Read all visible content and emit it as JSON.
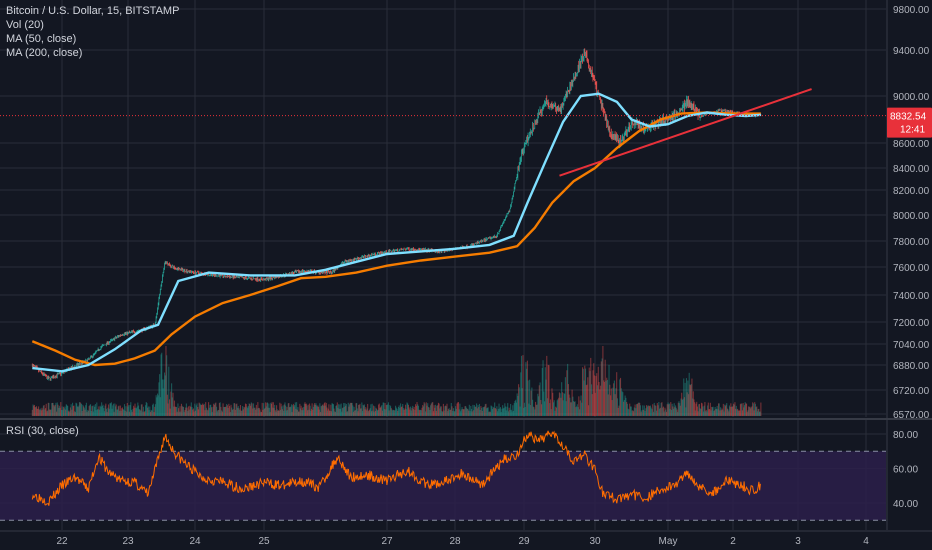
{
  "header": {
    "symbol_line": "Bitcoin / U.S. Dollar, 15, BITSTAMP",
    "indicators": [
      "Vol (20)",
      "MA (50, close)",
      "MA (200, close)"
    ]
  },
  "rsi_panel": {
    "label": "RSI (30, close)"
  },
  "price_tag": {
    "value": "8832.54",
    "countdown": "12:41"
  },
  "colors": {
    "background": "#131722",
    "grid": "#2a2e39",
    "axis_text": "#b2b5be",
    "candle_up": "#26a69a",
    "candle_down": "#ef5350",
    "ma50": "#7fdfff",
    "ma200": "#f57c00",
    "trendline": "#e8313a",
    "rsi": "#ff6d00",
    "rsi_band": "#2b1f4a",
    "price_tag": "#e8313a"
  },
  "chart_data": [
    {
      "type": "candlestick",
      "title": "Bitcoin / U.S. Dollar, 15, BITSTAMP",
      "x_ticks": [
        "22",
        "23",
        "24",
        "25",
        "27",
        "28",
        "29",
        "30",
        "May",
        "2",
        "3",
        "4"
      ],
      "y_ticks": [
        6570,
        6720,
        6880,
        7040,
        7200,
        7400,
        7600,
        7800,
        8000,
        8200,
        8400,
        8600,
        9000,
        9400,
        9800
      ],
      "ylim": [
        6570,
        9800
      ],
      "last_price": 8832.54,
      "close_path": [
        {
          "x": 21.55,
          "y": 6880
        },
        {
          "x": 21.8,
          "y": 6790
        },
        {
          "x": 22.1,
          "y": 6850
        },
        {
          "x": 22.4,
          "y": 6920
        },
        {
          "x": 22.6,
          "y": 7020
        },
        {
          "x": 22.9,
          "y": 7110
        },
        {
          "x": 23.2,
          "y": 7140
        },
        {
          "x": 23.4,
          "y": 7180
        },
        {
          "x": 23.55,
          "y": 7640
        },
        {
          "x": 23.7,
          "y": 7590
        },
        {
          "x": 24.0,
          "y": 7560
        },
        {
          "x": 24.5,
          "y": 7530
        },
        {
          "x": 25.0,
          "y": 7510
        },
        {
          "x": 25.6,
          "y": 7570
        },
        {
          "x": 26.1,
          "y": 7560
        },
        {
          "x": 26.3,
          "y": 7640
        },
        {
          "x": 26.8,
          "y": 7700
        },
        {
          "x": 27.3,
          "y": 7740
        },
        {
          "x": 27.8,
          "y": 7720
        },
        {
          "x": 28.2,
          "y": 7760
        },
        {
          "x": 28.6,
          "y": 7840
        },
        {
          "x": 28.8,
          "y": 8050
        },
        {
          "x": 28.95,
          "y": 8500
        },
        {
          "x": 29.1,
          "y": 8700
        },
        {
          "x": 29.3,
          "y": 8950
        },
        {
          "x": 29.5,
          "y": 8880
        },
        {
          "x": 29.7,
          "y": 9150
        },
        {
          "x": 29.85,
          "y": 9380
        },
        {
          "x": 29.95,
          "y": 9200
        },
        {
          "x": 30.05,
          "y": 9000
        },
        {
          "x": 30.2,
          "y": 8700
        },
        {
          "x": 30.35,
          "y": 8600
        },
        {
          "x": 30.5,
          "y": 8780
        },
        {
          "x": 30.7,
          "y": 8720
        },
        {
          "x": 30.9,
          "y": 8790
        },
        {
          "x": 31.1,
          "y": 8830
        },
        {
          "x": 31.3,
          "y": 8950
        },
        {
          "x": 31.5,
          "y": 8830
        },
        {
          "x": 31.8,
          "y": 8880
        },
        {
          "x": 32.1,
          "y": 8850
        },
        {
          "x": 32.43,
          "y": 8832.54
        }
      ],
      "series": [
        {
          "name": "MA (50, close)",
          "points": [
            {
              "x": 21.55,
              "y": 6860
            },
            {
              "x": 22.0,
              "y": 6840
            },
            {
              "x": 22.4,
              "y": 6880
            },
            {
              "x": 22.8,
              "y": 7000
            },
            {
              "x": 23.2,
              "y": 7140
            },
            {
              "x": 23.45,
              "y": 7180
            },
            {
              "x": 23.75,
              "y": 7500
            },
            {
              "x": 24.2,
              "y": 7560
            },
            {
              "x": 24.8,
              "y": 7540
            },
            {
              "x": 25.5,
              "y": 7540
            },
            {
              "x": 26.0,
              "y": 7580
            },
            {
              "x": 26.5,
              "y": 7640
            },
            {
              "x": 27.0,
              "y": 7700
            },
            {
              "x": 27.5,
              "y": 7720
            },
            {
              "x": 28.0,
              "y": 7740
            },
            {
              "x": 28.5,
              "y": 7770
            },
            {
              "x": 28.85,
              "y": 7840
            },
            {
              "x": 29.05,
              "y": 8100
            },
            {
              "x": 29.3,
              "y": 8450
            },
            {
              "x": 29.55,
              "y": 8780
            },
            {
              "x": 29.8,
              "y": 9000
            },
            {
              "x": 30.05,
              "y": 9020
            },
            {
              "x": 30.3,
              "y": 8950
            },
            {
              "x": 30.5,
              "y": 8800
            },
            {
              "x": 30.75,
              "y": 8740
            },
            {
              "x": 31.0,
              "y": 8760
            },
            {
              "x": 31.3,
              "y": 8830
            },
            {
              "x": 31.6,
              "y": 8860
            },
            {
              "x": 31.9,
              "y": 8840
            },
            {
              "x": 32.2,
              "y": 8830
            },
            {
              "x": 32.43,
              "y": 8840
            }
          ]
        },
        {
          "name": "MA (200, close)",
          "points": [
            {
              "x": 21.55,
              "y": 7060
            },
            {
              "x": 21.9,
              "y": 6990
            },
            {
              "x": 22.2,
              "y": 6920
            },
            {
              "x": 22.5,
              "y": 6880
            },
            {
              "x": 22.8,
              "y": 6890
            },
            {
              "x": 23.1,
              "y": 6930
            },
            {
              "x": 23.4,
              "y": 6990
            },
            {
              "x": 23.65,
              "y": 7110
            },
            {
              "x": 24.0,
              "y": 7240
            },
            {
              "x": 24.4,
              "y": 7340
            },
            {
              "x": 24.8,
              "y": 7400
            },
            {
              "x": 25.2,
              "y": 7460
            },
            {
              "x": 25.6,
              "y": 7520
            },
            {
              "x": 26.0,
              "y": 7530
            },
            {
              "x": 26.5,
              "y": 7560
            },
            {
              "x": 27.0,
              "y": 7610
            },
            {
              "x": 27.5,
              "y": 7650
            },
            {
              "x": 28.0,
              "y": 7680
            },
            {
              "x": 28.5,
              "y": 7710
            },
            {
              "x": 28.9,
              "y": 7760
            },
            {
              "x": 29.15,
              "y": 7900
            },
            {
              "x": 29.4,
              "y": 8100
            },
            {
              "x": 29.7,
              "y": 8280
            },
            {
              "x": 30.0,
              "y": 8400
            },
            {
              "x": 30.3,
              "y": 8560
            },
            {
              "x": 30.6,
              "y": 8700
            },
            {
              "x": 30.9,
              "y": 8800
            },
            {
              "x": 31.2,
              "y": 8850
            },
            {
              "x": 31.6,
              "y": 8860
            },
            {
              "x": 32.0,
              "y": 8850
            },
            {
              "x": 32.43,
              "y": 8850
            }
          ]
        }
      ],
      "trendline": [
        {
          "x": 29.5,
          "y": 8330
        },
        {
          "x": 33.2,
          "y": 9060
        }
      ],
      "volume_spikes": [
        {
          "x": 23.55,
          "v": 1.0
        },
        {
          "x": 29.0,
          "v": 0.7
        },
        {
          "x": 29.3,
          "v": 0.8
        },
        {
          "x": 29.6,
          "v": 0.6
        },
        {
          "x": 29.9,
          "v": 0.9
        },
        {
          "x": 30.1,
          "v": 0.75
        },
        {
          "x": 30.3,
          "v": 0.55
        },
        {
          "x": 31.3,
          "v": 0.5
        }
      ]
    },
    {
      "type": "line",
      "title": "RSI (30, close)",
      "y_ticks": [
        40,
        60,
        80
      ],
      "ylim": [
        25,
        86
      ],
      "bands": [
        30,
        70
      ],
      "series": [
        {
          "name": "RSI (30, close)",
          "points": [
            {
              "x": 21.55,
              "y": 45
            },
            {
              "x": 21.8,
              "y": 41
            },
            {
              "x": 22.0,
              "y": 50
            },
            {
              "x": 22.2,
              "y": 55
            },
            {
              "x": 22.4,
              "y": 48
            },
            {
              "x": 22.55,
              "y": 67
            },
            {
              "x": 22.7,
              "y": 58
            },
            {
              "x": 22.9,
              "y": 53
            },
            {
              "x": 23.1,
              "y": 52
            },
            {
              "x": 23.3,
              "y": 45
            },
            {
              "x": 23.55,
              "y": 79
            },
            {
              "x": 23.7,
              "y": 69
            },
            {
              "x": 23.85,
              "y": 63
            },
            {
              "x": 24.1,
              "y": 55
            },
            {
              "x": 24.4,
              "y": 52
            },
            {
              "x": 24.7,
              "y": 48
            },
            {
              "x": 25.0,
              "y": 52
            },
            {
              "x": 25.3,
              "y": 50
            },
            {
              "x": 25.6,
              "y": 53
            },
            {
              "x": 25.9,
              "y": 49
            },
            {
              "x": 26.2,
              "y": 67
            },
            {
              "x": 26.4,
              "y": 55
            },
            {
              "x": 26.7,
              "y": 56
            },
            {
              "x": 27.0,
              "y": 53
            },
            {
              "x": 27.3,
              "y": 59
            },
            {
              "x": 27.6,
              "y": 50
            },
            {
              "x": 27.9,
              "y": 53
            },
            {
              "x": 28.1,
              "y": 57
            },
            {
              "x": 28.4,
              "y": 51
            },
            {
              "x": 28.7,
              "y": 65
            },
            {
              "x": 28.9,
              "y": 68
            },
            {
              "x": 29.05,
              "y": 80
            },
            {
              "x": 29.2,
              "y": 75
            },
            {
              "x": 29.4,
              "y": 82
            },
            {
              "x": 29.55,
              "y": 74
            },
            {
              "x": 29.7,
              "y": 64
            },
            {
              "x": 29.85,
              "y": 68
            },
            {
              "x": 30.0,
              "y": 60
            },
            {
              "x": 30.1,
              "y": 46
            },
            {
              "x": 30.3,
              "y": 42
            },
            {
              "x": 30.5,
              "y": 45
            },
            {
              "x": 30.7,
              "y": 43
            },
            {
              "x": 30.9,
              "y": 48
            },
            {
              "x": 31.1,
              "y": 50
            },
            {
              "x": 31.3,
              "y": 58
            },
            {
              "x": 31.5,
              "y": 49
            },
            {
              "x": 31.7,
              "y": 46
            },
            {
              "x": 31.9,
              "y": 53
            },
            {
              "x": 32.1,
              "y": 51
            },
            {
              "x": 32.3,
              "y": 47
            },
            {
              "x": 32.43,
              "y": 51
            }
          ]
        }
      ]
    }
  ]
}
